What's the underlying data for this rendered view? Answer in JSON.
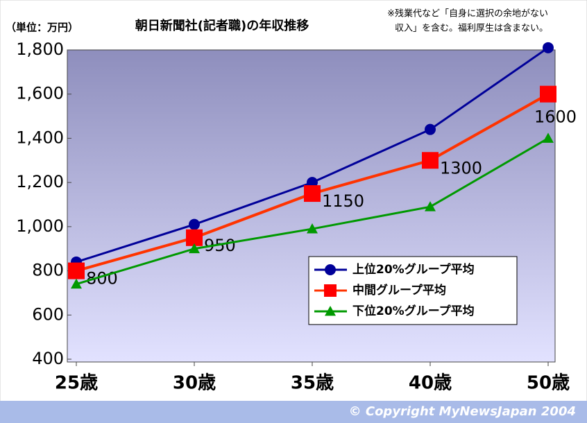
{
  "chart_data": {
    "type": "line",
    "title": "朝日新聞社(記者職)の年収推移",
    "unit_label": "（単位：万円）",
    "note": [
      "※残業代など「自身に選択の余地がない",
      "収入」を含む。福利厚生は含まない。"
    ],
    "footer": "© Copyright   MyNewsJapan 2004",
    "categories": [
      "25歳",
      "30歳",
      "35歳",
      "40歳",
      "50歳"
    ],
    "ylim": [
      400,
      1800
    ],
    "yticks": [
      400,
      600,
      800,
      {
        "value": 1000,
        "label": "1,000"
      },
      {
        "value": 1200,
        "label": "1,200"
      },
      {
        "value": 1400,
        "label": "1,400"
      },
      {
        "value": 1600,
        "label": "1,600"
      },
      {
        "value": 1800,
        "label": "1,800"
      }
    ],
    "series": [
      {
        "name": "上位20%グループ平均",
        "color": "#000099",
        "marker": "circle",
        "values": [
          840,
          1010,
          1200,
          1440,
          1810
        ]
      },
      {
        "name": "中間グループ平均",
        "color": "#ff3300",
        "marker": "square",
        "data_labels": true,
        "values": [
          800,
          950,
          1150,
          1300,
          1600
        ]
      },
      {
        "name": "下位20%グループ平均",
        "color": "#009900",
        "marker": "triangle",
        "values": [
          740,
          900,
          990,
          1090,
          1400
        ]
      }
    ]
  }
}
